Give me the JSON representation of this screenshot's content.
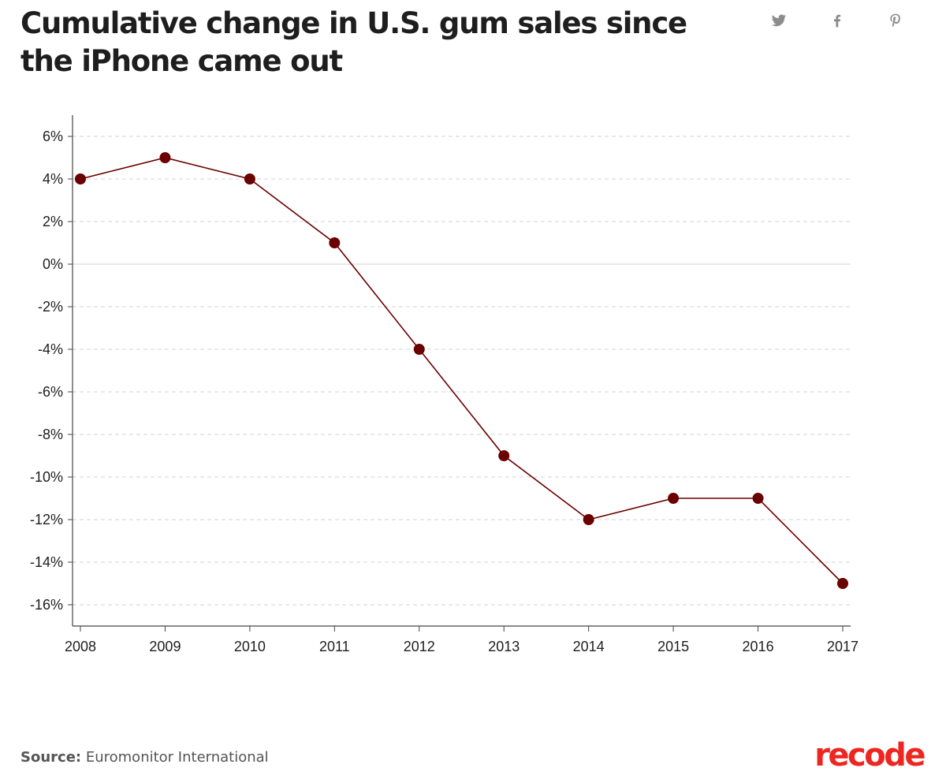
{
  "title": "Cumulative change in U.S. gum sales since the iPhone came out",
  "share": {
    "twitter": "twitter-icon",
    "facebook": "facebook-icon",
    "pinterest": "pinterest-icon"
  },
  "colors": {
    "line": "#6b0000",
    "point": "#6b0000",
    "grid": "#d3d3d3",
    "axis": "#444444",
    "brand": "#ee2622"
  },
  "chart_data": {
    "type": "line",
    "title": "Cumulative change in U.S. gum sales since the iPhone came out",
    "xlabel": "",
    "ylabel": "",
    "x": [
      "2008",
      "2009",
      "2010",
      "2011",
      "2012",
      "2013",
      "2014",
      "2015",
      "2016",
      "2017"
    ],
    "series": [
      {
        "name": "Cumulative change in U.S. gum sales",
        "values": [
          4,
          5,
          4,
          1,
          -4,
          -9,
          -12,
          -11,
          -11,
          -15
        ]
      }
    ],
    "ylim": [
      -17,
      7
    ],
    "yticks": [
      6,
      4,
      2,
      0,
      -2,
      -4,
      -6,
      -8,
      -10,
      -12,
      -14,
      -16
    ],
    "ytick_labels": [
      "6%",
      "4%",
      "2%",
      "0%",
      "-2%",
      "-4%",
      "-6%",
      "-8%",
      "-10%",
      "-12%",
      "-14%",
      "-16%"
    ],
    "grid": true
  },
  "source": {
    "label": "Source:",
    "text": "Euromonitor International"
  },
  "brand": "recode"
}
